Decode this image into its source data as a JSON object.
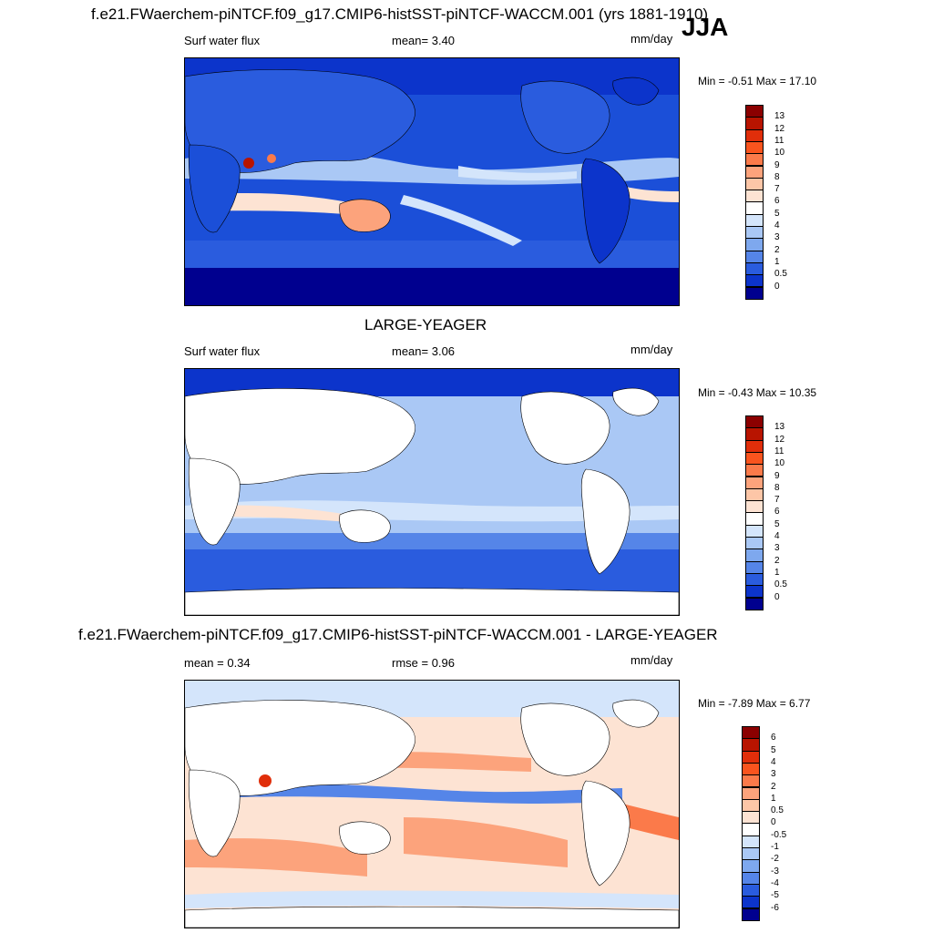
{
  "season": "JJA",
  "panels": [
    {
      "title": "f.e21.FWaerchem-piNTCF.f09_g17.CMIP6-histSST-piNTCF-WACCM.001 (yrs 1881-1910)",
      "left_label": "Surf water flux",
      "center_label": "mean=   3.40",
      "units": "mm/day",
      "minmax": "Min =  -0.51 Max =  17.10",
      "colorbar": {
        "labels": [
          "13",
          "12",
          "11",
          "10",
          "9",
          "8",
          "7",
          "6",
          "5",
          "4",
          "3",
          "2",
          "1",
          "0.5",
          "0"
        ],
        "colors": [
          "#8b0000",
          "#b81400",
          "#e02e0a",
          "#f9541e",
          "#fb7a4a",
          "#fca37c",
          "#fdc6a7",
          "#fde3d3",
          "#ffffff",
          "#d4e5fb",
          "#aac8f5",
          "#7ea8ee",
          "#5585e8",
          "#2a5cde",
          "#0c34cb",
          "#00008f"
        ]
      }
    },
    {
      "title": "LARGE-YEAGER",
      "left_label": "Surf water flux",
      "center_label": "mean=   3.06",
      "units": "mm/day",
      "minmax": "Min =  -0.43 Max =  10.35",
      "colorbar": {
        "labels": [
          "13",
          "12",
          "11",
          "10",
          "9",
          "8",
          "7",
          "6",
          "5",
          "4",
          "3",
          "2",
          "1",
          "0.5",
          "0"
        ],
        "colors": [
          "#8b0000",
          "#b81400",
          "#e02e0a",
          "#f9541e",
          "#fb7a4a",
          "#fca37c",
          "#fdc6a7",
          "#fde3d3",
          "#ffffff",
          "#d4e5fb",
          "#aac8f5",
          "#7ea8ee",
          "#5585e8",
          "#2a5cde",
          "#0c34cb",
          "#00008f"
        ]
      }
    },
    {
      "title": "f.e21.FWaerchem-piNTCF.f09_g17.CMIP6-histSST-piNTCF-WACCM.001 - LARGE-YEAGER",
      "left_label": "mean =   0.34",
      "center_label": "rmse =   0.96",
      "units": "mm/day",
      "minmax": "Min =  -7.89 Max =   6.77",
      "colorbar": {
        "labels": [
          "6",
          "5",
          "4",
          "3",
          "2",
          "1",
          "0.5",
          "0",
          "-0.5",
          "-1",
          "-2",
          "-3",
          "-4",
          "-5",
          "-6"
        ],
        "colors": [
          "#8b0000",
          "#b81400",
          "#e02e0a",
          "#f9541e",
          "#fb7a4a",
          "#fca37c",
          "#fdc6a7",
          "#fde3d3",
          "#ffffff",
          "#d4e5fb",
          "#aac8f5",
          "#7ea8ee",
          "#5585e8",
          "#2a5cde",
          "#0c34cb",
          "#00008f"
        ]
      }
    }
  ]
}
